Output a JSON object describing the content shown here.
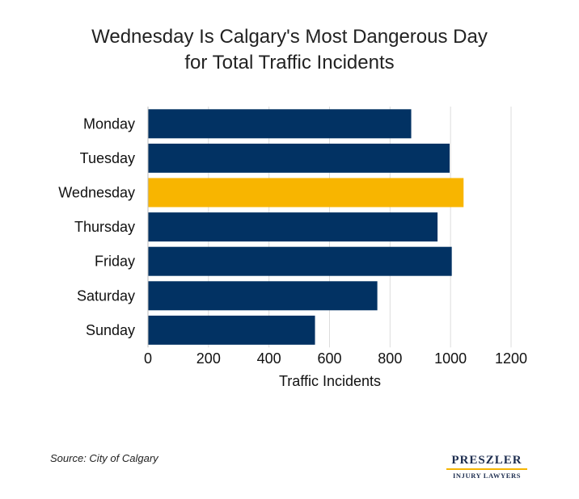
{
  "title_lines": [
    "Wednesday Is Calgary's Most Dangerous Day",
    "for Total Traffic Incidents"
  ],
  "source": "Source: City of Calgary",
  "logo": {
    "name": "PRESZLER",
    "sub": "INJURY LAWYERS"
  },
  "colors": {
    "bar": "#023263",
    "highlight": "#f8b500",
    "grid": "#dcdcdc",
    "logo_accent": "#f5b400"
  },
  "chart_data": {
    "type": "bar",
    "orientation": "horizontal",
    "categories": [
      "Monday",
      "Tuesday",
      "Wednesday",
      "Thursday",
      "Friday",
      "Saturday",
      "Sunday"
    ],
    "values": [
      870,
      997,
      1043,
      957,
      1004,
      758,
      552
    ],
    "highlight_category": "Wednesday",
    "xlabel": "Traffic Incidents",
    "ylabel": "",
    "xlim": [
      0,
      1200
    ],
    "xticks": [
      "0",
      "200",
      "400",
      "600",
      "800",
      "1000",
      "1200"
    ],
    "grid": true,
    "legend": "none"
  }
}
